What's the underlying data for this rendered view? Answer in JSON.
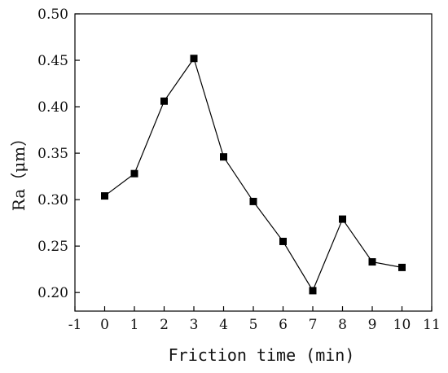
{
  "chart_data": {
    "type": "line",
    "xlabel": "Friction time (min)",
    "ylabel": "Ra（μm）",
    "xlim": [
      -1,
      11
    ],
    "ylim": [
      0.18,
      0.5
    ],
    "xticks": [
      "-1",
      "0",
      "1",
      "2",
      "3",
      "4",
      "5",
      "6",
      "7",
      "8",
      "9",
      "10",
      "11"
    ],
    "yticks": [
      "0.20",
      "0.25",
      "0.30",
      "0.35",
      "0.40",
      "0.45",
      "0.50"
    ],
    "grid": false,
    "marker": "square",
    "series": [
      {
        "x": [
          0,
          1,
          2,
          3,
          4,
          5,
          6,
          7,
          8,
          9,
          10
        ],
        "values": [
          0.304,
          0.328,
          0.406,
          0.452,
          0.346,
          0.298,
          0.255,
          0.202,
          0.279,
          0.233,
          0.227
        ]
      }
    ],
    "colors": {
      "line": "#000000",
      "marker": "#000000",
      "axis": "#000000"
    }
  }
}
